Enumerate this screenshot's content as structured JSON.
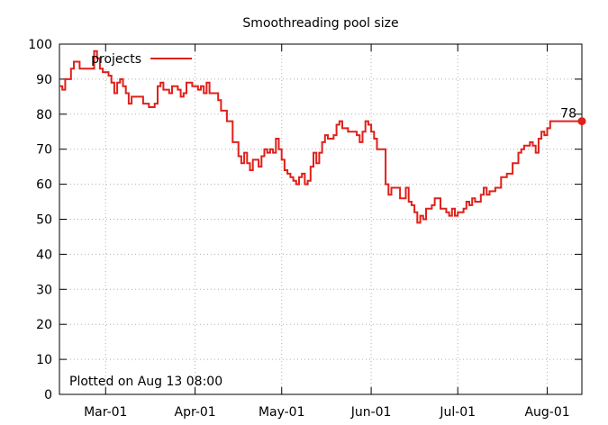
{
  "chart_data": {
    "type": "line",
    "title": "Smoothreading pool size",
    "xlabel": "",
    "ylabel": "",
    "ylim": [
      0,
      100
    ],
    "yticks": [
      0,
      10,
      20,
      30,
      40,
      50,
      60,
      70,
      80,
      90,
      100
    ],
    "xlim": [
      "2019-02-13",
      "2019-08-13"
    ],
    "xticks": [
      {
        "date": "2019-03-01",
        "label": "Mar-01"
      },
      {
        "date": "2019-04-01",
        "label": "Apr-01"
      },
      {
        "date": "2019-05-01",
        "label": "May-01"
      },
      {
        "date": "2019-06-01",
        "label": "Jun-01"
      },
      {
        "date": "2019-07-01",
        "label": "Jul-01"
      },
      {
        "date": "2019-08-01",
        "label": "Aug-01"
      }
    ],
    "grid": true,
    "legend": "top-left",
    "series": [
      {
        "name": "projects",
        "color": "#e0201b",
        "step": true,
        "last_label": "78",
        "points": [
          [
            "2019-02-13",
            88
          ],
          [
            "2019-02-14",
            87
          ],
          [
            "2019-02-15",
            90
          ],
          [
            "2019-02-17",
            93
          ],
          [
            "2019-02-18",
            95
          ],
          [
            "2019-02-20",
            93
          ],
          [
            "2019-02-23",
            93
          ],
          [
            "2019-02-25",
            98
          ],
          [
            "2019-02-26",
            96
          ],
          [
            "2019-02-27",
            93
          ],
          [
            "2019-02-28",
            92
          ],
          [
            "2019-03-02",
            91
          ],
          [
            "2019-03-03",
            89
          ],
          [
            "2019-03-04",
            86
          ],
          [
            "2019-03-05",
            89
          ],
          [
            "2019-03-06",
            90
          ],
          [
            "2019-03-07",
            88
          ],
          [
            "2019-03-08",
            86
          ],
          [
            "2019-03-09",
            83
          ],
          [
            "2019-03-10",
            85
          ],
          [
            "2019-03-14",
            83
          ],
          [
            "2019-03-16",
            82
          ],
          [
            "2019-03-18",
            83
          ],
          [
            "2019-03-19",
            88
          ],
          [
            "2019-03-20",
            89
          ],
          [
            "2019-03-21",
            87
          ],
          [
            "2019-03-23",
            86
          ],
          [
            "2019-03-24",
            88
          ],
          [
            "2019-03-26",
            87
          ],
          [
            "2019-03-27",
            85
          ],
          [
            "2019-03-28",
            86
          ],
          [
            "2019-03-29",
            89
          ],
          [
            "2019-03-31",
            88
          ],
          [
            "2019-04-02",
            87
          ],
          [
            "2019-04-03",
            88
          ],
          [
            "2019-04-04",
            86
          ],
          [
            "2019-04-05",
            89
          ],
          [
            "2019-04-06",
            86
          ],
          [
            "2019-04-09",
            84
          ],
          [
            "2019-04-10",
            81
          ],
          [
            "2019-04-12",
            78
          ],
          [
            "2019-04-14",
            72
          ],
          [
            "2019-04-16",
            68
          ],
          [
            "2019-04-17",
            66
          ],
          [
            "2019-04-18",
            69
          ],
          [
            "2019-04-19",
            66
          ],
          [
            "2019-04-20",
            64
          ],
          [
            "2019-04-21",
            67
          ],
          [
            "2019-04-23",
            65
          ],
          [
            "2019-04-24",
            68
          ],
          [
            "2019-04-25",
            70
          ],
          [
            "2019-04-26",
            69
          ],
          [
            "2019-04-27",
            70
          ],
          [
            "2019-04-28",
            69
          ],
          [
            "2019-04-29",
            73
          ],
          [
            "2019-04-30",
            70
          ],
          [
            "2019-05-01",
            67
          ],
          [
            "2019-05-02",
            64
          ],
          [
            "2019-05-03",
            63
          ],
          [
            "2019-05-04",
            62
          ],
          [
            "2019-05-05",
            61
          ],
          [
            "2019-05-06",
            60
          ],
          [
            "2019-05-07",
            62
          ],
          [
            "2019-05-08",
            63
          ],
          [
            "2019-05-09",
            60
          ],
          [
            "2019-05-10",
            61
          ],
          [
            "2019-05-11",
            65
          ],
          [
            "2019-05-12",
            69
          ],
          [
            "2019-05-13",
            66
          ],
          [
            "2019-05-14",
            69
          ],
          [
            "2019-05-15",
            72
          ],
          [
            "2019-05-16",
            74
          ],
          [
            "2019-05-17",
            73
          ],
          [
            "2019-05-19",
            74
          ],
          [
            "2019-05-20",
            77
          ],
          [
            "2019-05-21",
            78
          ],
          [
            "2019-05-22",
            76
          ],
          [
            "2019-05-24",
            75
          ],
          [
            "2019-05-27",
            74
          ],
          [
            "2019-05-28",
            72
          ],
          [
            "2019-05-29",
            75
          ],
          [
            "2019-05-30",
            78
          ],
          [
            "2019-05-31",
            77
          ],
          [
            "2019-06-01",
            75
          ],
          [
            "2019-06-02",
            73
          ],
          [
            "2019-06-03",
            70
          ],
          [
            "2019-06-06",
            60
          ],
          [
            "2019-06-07",
            57
          ],
          [
            "2019-06-08",
            59
          ],
          [
            "2019-06-11",
            56
          ],
          [
            "2019-06-13",
            59
          ],
          [
            "2019-06-14",
            55
          ],
          [
            "2019-06-15",
            54
          ],
          [
            "2019-06-16",
            52
          ],
          [
            "2019-06-17",
            49
          ],
          [
            "2019-06-18",
            51
          ],
          [
            "2019-06-19",
            50
          ],
          [
            "2019-06-20",
            53
          ],
          [
            "2019-06-22",
            54
          ],
          [
            "2019-06-23",
            56
          ],
          [
            "2019-06-25",
            53
          ],
          [
            "2019-06-27",
            52
          ],
          [
            "2019-06-28",
            51
          ],
          [
            "2019-06-29",
            53
          ],
          [
            "2019-06-30",
            51
          ],
          [
            "2019-07-01",
            52
          ],
          [
            "2019-07-03",
            53
          ],
          [
            "2019-07-04",
            55
          ],
          [
            "2019-07-05",
            54
          ],
          [
            "2019-07-06",
            56
          ],
          [
            "2019-07-07",
            55
          ],
          [
            "2019-07-09",
            57
          ],
          [
            "2019-07-10",
            59
          ],
          [
            "2019-07-11",
            57
          ],
          [
            "2019-07-12",
            58
          ],
          [
            "2019-07-14",
            59
          ],
          [
            "2019-07-16",
            62
          ],
          [
            "2019-07-18",
            63
          ],
          [
            "2019-07-20",
            66
          ],
          [
            "2019-07-22",
            69
          ],
          [
            "2019-07-23",
            70
          ],
          [
            "2019-07-24",
            71
          ],
          [
            "2019-07-26",
            72
          ],
          [
            "2019-07-27",
            71
          ],
          [
            "2019-07-28",
            69
          ],
          [
            "2019-07-29",
            73
          ],
          [
            "2019-07-30",
            75
          ],
          [
            "2019-07-31",
            74
          ],
          [
            "2019-08-01",
            76
          ],
          [
            "2019-08-02",
            78
          ]
        ]
      }
    ]
  },
  "annotations": {
    "plotted_note": "Plotted on Aug 13 08:00"
  }
}
